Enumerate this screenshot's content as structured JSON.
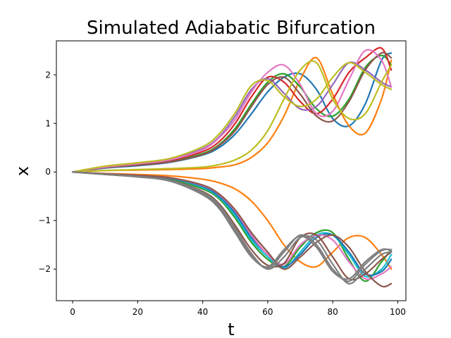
{
  "chart_data": {
    "type": "line",
    "title": "Simulated Adiabatic Bifurcation",
    "xlabel": "t",
    "ylabel": "x",
    "xlim": [
      -5,
      102.5
    ],
    "ylim": [
      -2.65,
      2.7
    ],
    "x_ticks": [
      0,
      20,
      40,
      60,
      80,
      100
    ],
    "x_tick_labels": [
      "0",
      "20",
      "40",
      "60",
      "80",
      "100"
    ],
    "y_ticks": [
      -2,
      -1,
      0,
      1,
      2
    ],
    "y_tick_labels": [
      "−2",
      "−1",
      "0",
      "1",
      "2"
    ],
    "grid": false,
    "legend": "none",
    "x": [
      0,
      10,
      20,
      30,
      40,
      45,
      50,
      55,
      60,
      65,
      70,
      75,
      80,
      85,
      90,
      95,
      98
    ],
    "series": [
      {
        "color": "#1f77b4",
        "values": [
          0,
          0.08,
          0.13,
          0.2,
          0.35,
          0.5,
          0.78,
          1.2,
          1.65,
          1.95,
          2.02,
          1.7,
          1.1,
          0.95,
          1.4,
          2.3,
          2.45
        ]
      },
      {
        "color": "#ff7f0e",
        "values": [
          0,
          0.03,
          0.04,
          0.05,
          0.07,
          0.1,
          0.15,
          0.3,
          0.6,
          1.15,
          1.9,
          2.35,
          1.6,
          0.95,
          0.8,
          1.5,
          2.3
        ]
      },
      {
        "color": "#2ca02c",
        "values": [
          0,
          0.09,
          0.15,
          0.22,
          0.38,
          0.56,
          0.9,
          1.4,
          1.85,
          2.02,
          1.75,
          1.3,
          1.15,
          1.5,
          2.15,
          2.4,
          2.2
        ]
      },
      {
        "color": "#d62728",
        "values": [
          0,
          0.1,
          0.16,
          0.24,
          0.42,
          0.62,
          1.0,
          1.55,
          1.95,
          1.85,
          1.45,
          1.2,
          1.5,
          2.05,
          2.35,
          2.55,
          2.1
        ]
      },
      {
        "color": "#9467bd",
        "values": [
          0,
          0.11,
          0.18,
          0.26,
          0.48,
          0.72,
          1.15,
          1.7,
          1.92,
          1.62,
          1.3,
          1.35,
          1.8,
          2.25,
          2.1,
          1.85,
          1.75
        ]
      },
      {
        "color": "#8c564b",
        "values": [
          0,
          0.09,
          0.14,
          0.21,
          0.36,
          0.54,
          0.85,
          1.35,
          1.8,
          1.95,
          1.6,
          1.15,
          1.05,
          1.45,
          2.1,
          2.45,
          2.35
        ]
      },
      {
        "color": "#e377c2",
        "values": [
          0,
          0.1,
          0.17,
          0.25,
          0.46,
          0.7,
          1.08,
          1.65,
          2.05,
          2.2,
          1.8,
          1.2,
          1.25,
          1.9,
          2.5,
          2.3,
          1.75
        ]
      },
      {
        "color": "#bcbd22",
        "values": [
          0,
          0.12,
          0.19,
          0.28,
          0.52,
          0.78,
          1.22,
          1.78,
          1.88,
          1.55,
          1.35,
          1.5,
          1.95,
          2.25,
          2.05,
          1.8,
          1.7
        ]
      },
      {
        "color": "#bcbd22",
        "values": [
          0,
          0.03,
          0.05,
          0.07,
          0.1,
          0.15,
          0.25,
          0.45,
          0.85,
          1.5,
          2.1,
          2.25,
          1.5,
          1.1,
          1.2,
          1.85,
          2.2
        ]
      },
      {
        "color": "#ff7f0e",
        "values": [
          0,
          -0.03,
          -0.05,
          -0.08,
          -0.15,
          -0.22,
          -0.35,
          -0.6,
          -1.0,
          -1.5,
          -1.85,
          -1.95,
          -1.65,
          -1.35,
          -1.35,
          -1.7,
          -2.0
        ]
      },
      {
        "color": "#2ca02c",
        "values": [
          0,
          -0.04,
          -0.08,
          -0.15,
          -0.35,
          -0.55,
          -0.95,
          -1.45,
          -1.8,
          -1.95,
          -1.55,
          -1.25,
          -1.25,
          -1.8,
          -2.25,
          -1.85,
          -1.6
        ]
      },
      {
        "color": "#17becf",
        "values": [
          0,
          -0.04,
          -0.07,
          -0.13,
          -0.32,
          -0.52,
          -0.9,
          -1.4,
          -1.75,
          -1.98,
          -1.65,
          -1.3,
          -1.3,
          -1.7,
          -2.15,
          -2.0,
          -1.7
        ]
      },
      {
        "color": "#1f77b4",
        "values": [
          0,
          -0.04,
          -0.07,
          -0.13,
          -0.3,
          -0.5,
          -0.85,
          -1.35,
          -1.7,
          -1.95,
          -1.7,
          -1.35,
          -1.3,
          -1.65,
          -2.1,
          -2.05,
          -1.8
        ]
      },
      {
        "color": "#e377c2",
        "values": [
          0,
          -0.04,
          -0.07,
          -0.12,
          -0.28,
          -0.46,
          -0.8,
          -1.3,
          -1.7,
          -1.9,
          -1.5,
          -1.3,
          -1.4,
          -1.85,
          -2.2,
          -2.1,
          -1.95
        ]
      },
      {
        "color": "#8c564b",
        "values": [
          0,
          -0.05,
          -0.09,
          -0.17,
          -0.4,
          -0.65,
          -1.1,
          -1.6,
          -1.92,
          -1.88,
          -1.35,
          -1.3,
          -1.75,
          -2.2,
          -2.1,
          -1.8,
          -1.65
        ]
      },
      {
        "color": "#8c564b",
        "values": [
          0,
          -0.04,
          -0.07,
          -0.12,
          -0.27,
          -0.45,
          -0.78,
          -1.25,
          -1.65,
          -2.0,
          -1.75,
          -1.45,
          -1.3,
          -1.55,
          -2.05,
          -2.35,
          -2.3
        ]
      },
      {
        "color": "#7f7f7f",
        "values": [
          0,
          -0.05,
          -0.1,
          -0.18,
          -0.45,
          -0.72,
          -1.2,
          -1.72,
          -1.98,
          -1.65,
          -1.3,
          -1.5,
          -2.0,
          -2.25,
          -1.9,
          -1.62,
          -1.6
        ]
      },
      {
        "color": "#7f7f7f",
        "values": [
          0,
          -0.05,
          -0.09,
          -0.17,
          -0.42,
          -0.68,
          -1.15,
          -1.68,
          -2.0,
          -1.75,
          -1.35,
          -1.4,
          -1.9,
          -2.3,
          -2.0,
          -1.7,
          -1.65
        ]
      },
      {
        "color": "#7f7f7f",
        "values": [
          0,
          -0.05,
          -0.1,
          -0.19,
          -0.47,
          -0.75,
          -1.25,
          -1.75,
          -1.95,
          -1.6,
          -1.32,
          -1.55,
          -2.05,
          -2.2,
          -1.85,
          -1.6,
          -1.62
        ]
      }
    ]
  }
}
